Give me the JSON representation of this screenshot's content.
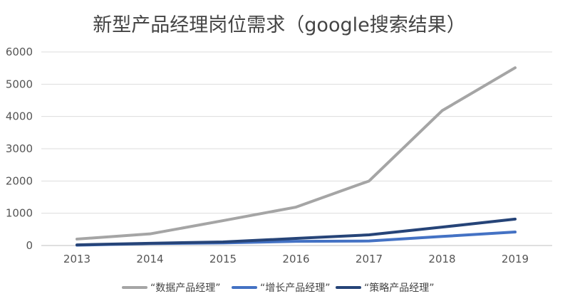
{
  "chart_data": {
    "type": "line",
    "title": "新型产品经理岗位需求（google搜索结果）",
    "categories": [
      "2013",
      "2014",
      "2015",
      "2016",
      "2017",
      "2018",
      "2019"
    ],
    "ylim": [
      0,
      6000
    ],
    "yticks": [
      0,
      1000,
      2000,
      3000,
      4000,
      5000,
      6000
    ],
    "grid": true,
    "legend_position": "bottom",
    "series": [
      {
        "name": "“数据产品经理”",
        "color": "#a5a5a5",
        "values": [
          200,
          360,
          770,
          1190,
          2000,
          4180,
          5510
        ]
      },
      {
        "name": "“增长产品经理”",
        "color": "#4472c4",
        "values": [
          10,
          60,
          80,
          130,
          140,
          280,
          420
        ]
      },
      {
        "name": "“策略产品经理”",
        "color": "#264478",
        "values": [
          20,
          70,
          110,
          220,
          330,
          570,
          820
        ]
      }
    ]
  }
}
